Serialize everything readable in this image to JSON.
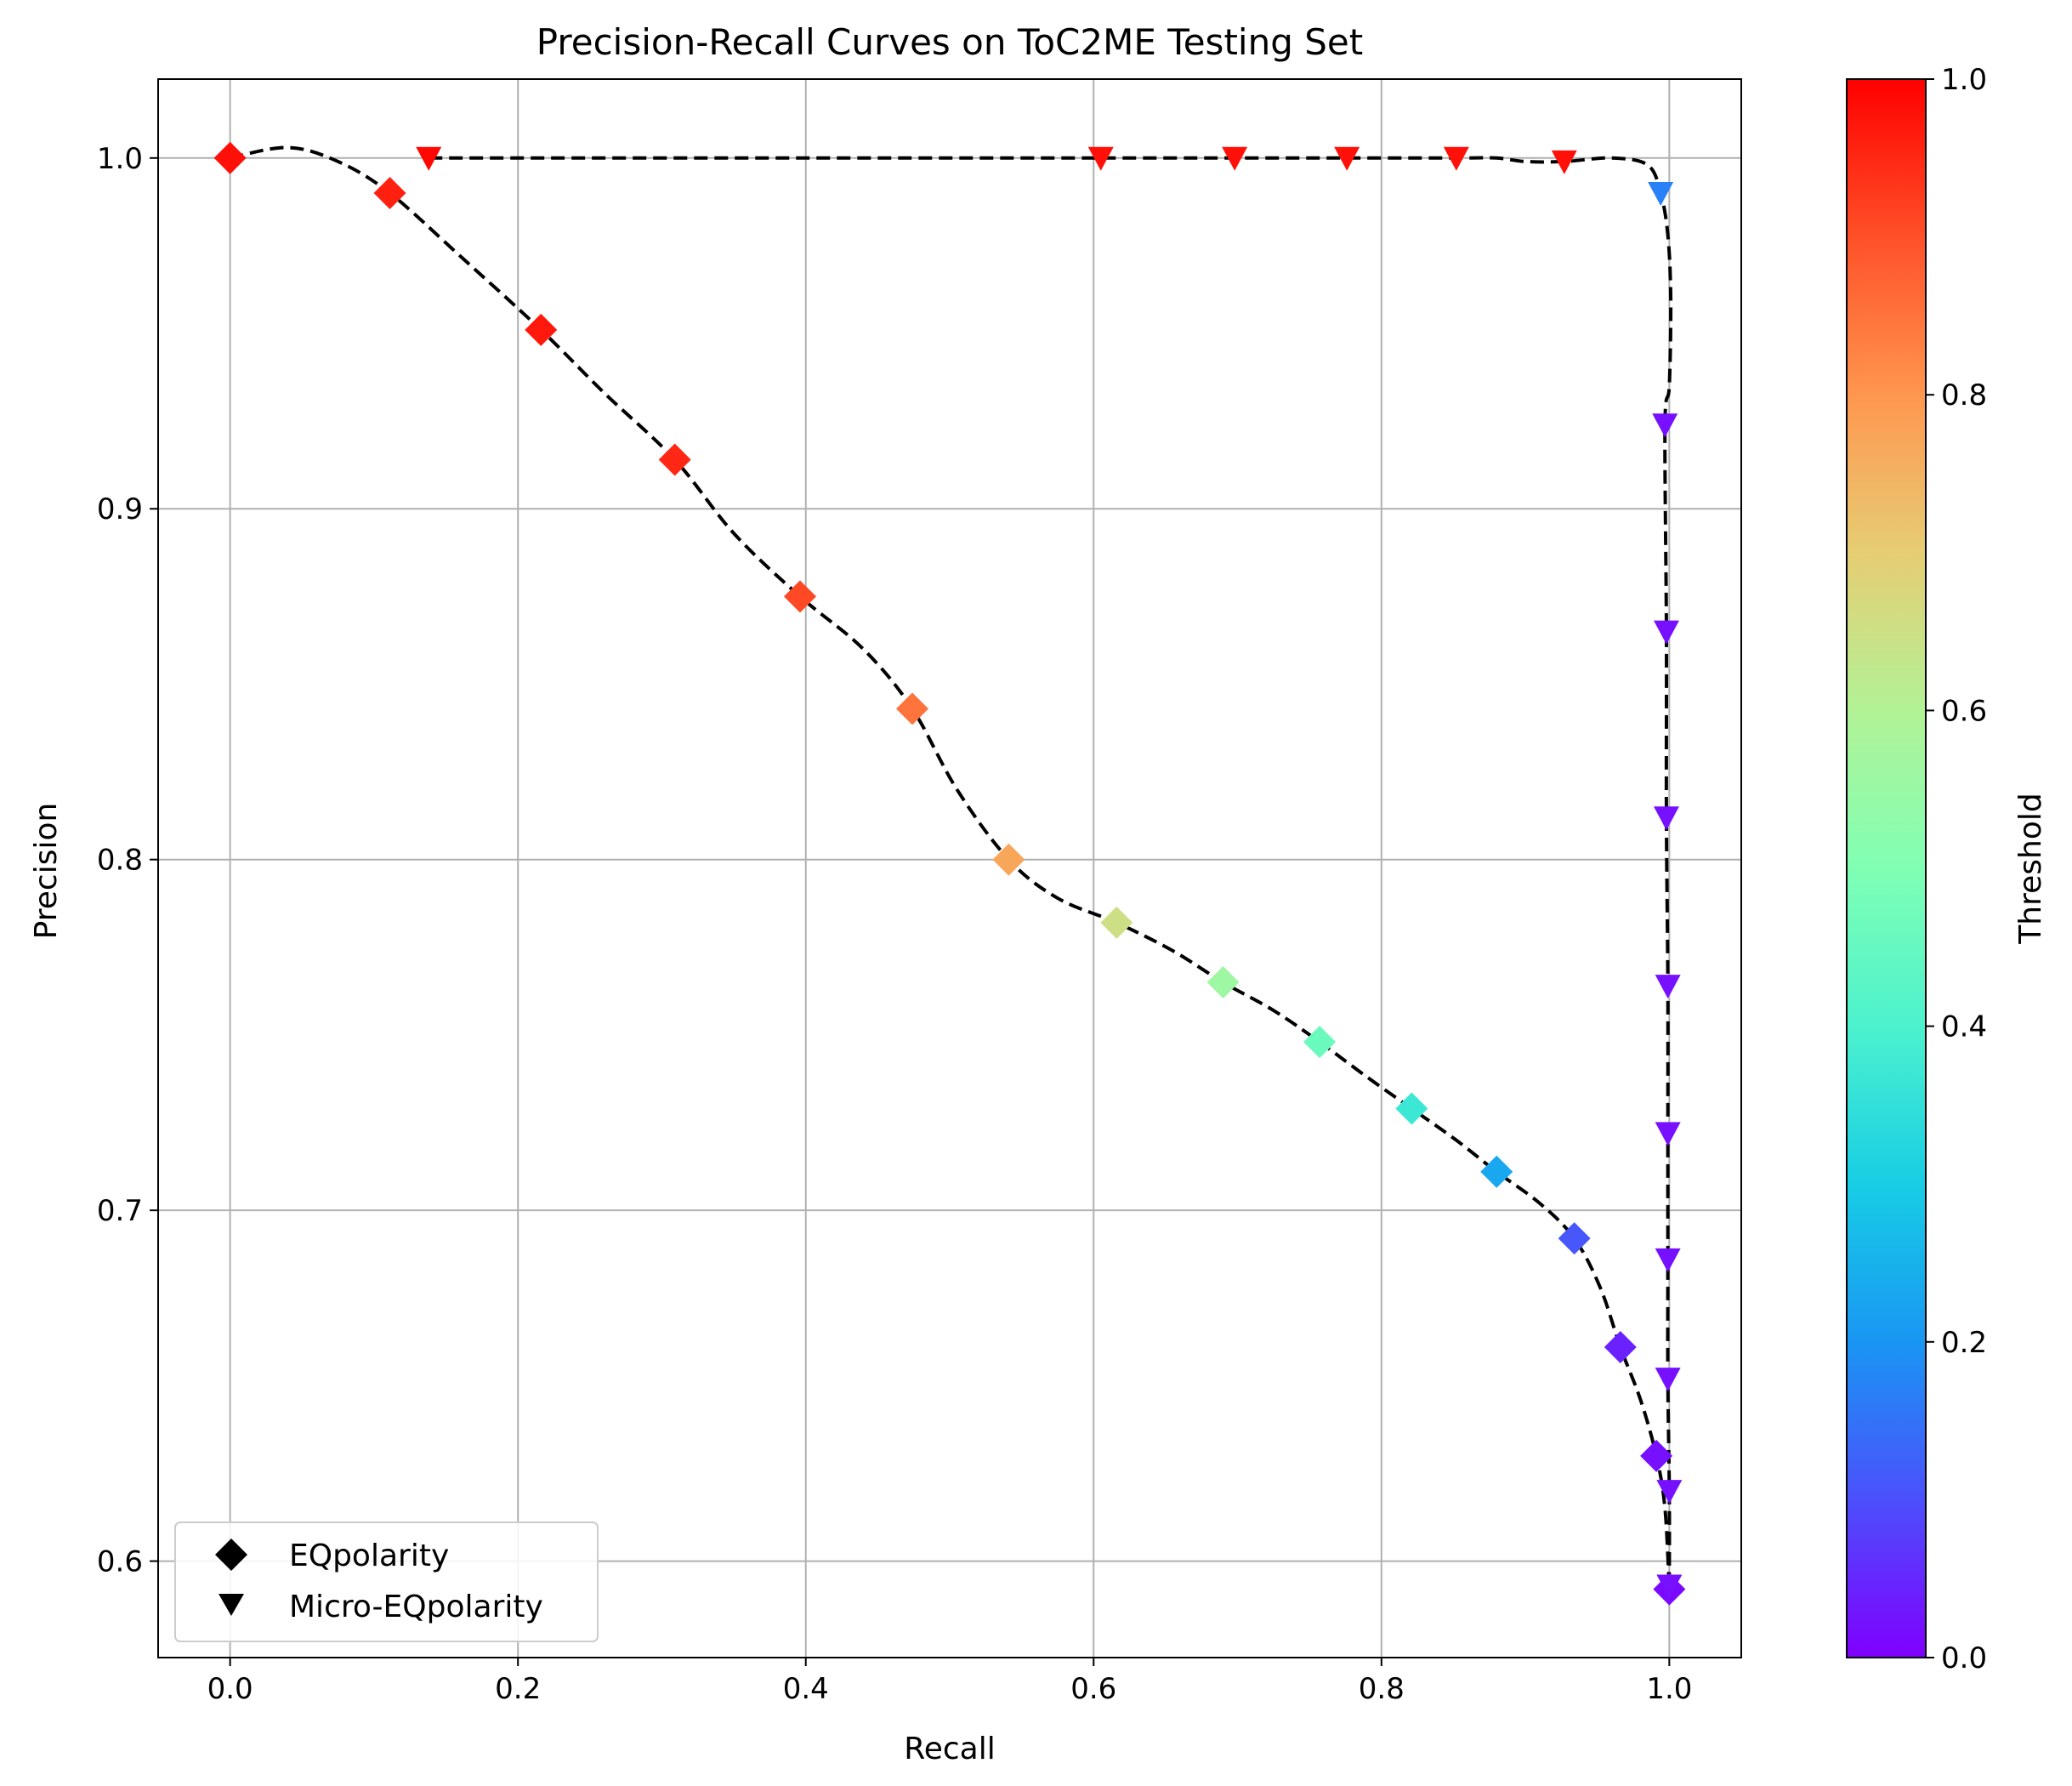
{
  "chart_data": {
    "type": "scatter",
    "title": "Precision-Recall Curves on ToC2ME Testing Set",
    "xlabel": "Recall",
    "ylabel": "Precision",
    "xlim": [
      -0.05,
      1.05
    ],
    "ylim": [
      0.5725,
      1.0225
    ],
    "xticks": [
      0.0,
      0.2,
      0.4,
      0.6,
      0.8,
      1.0
    ],
    "yticks": [
      0.6,
      0.7,
      0.8,
      0.9,
      1.0
    ],
    "grid": true,
    "legend_position": "lower-left",
    "colormap": "rainbow",
    "series": [
      {
        "name": "EQpolarity",
        "marker": "diamond",
        "points": [
          {
            "x": 0.0,
            "y": 1.0,
            "t": 0.98
          },
          {
            "x": 0.111,
            "y": 0.99,
            "t": 0.96
          },
          {
            "x": 0.216,
            "y": 0.951,
            "t": 0.97
          },
          {
            "x": 0.309,
            "y": 0.914,
            "t": 0.95
          },
          {
            "x": 0.396,
            "y": 0.875,
            "t": 0.91
          },
          {
            "x": 0.474,
            "y": 0.843,
            "t": 0.85
          },
          {
            "x": 0.541,
            "y": 0.8,
            "t": 0.77
          },
          {
            "x": 0.616,
            "y": 0.782,
            "t": 0.65
          },
          {
            "x": 0.69,
            "y": 0.765,
            "t": 0.56
          },
          {
            "x": 0.757,
            "y": 0.748,
            "t": 0.46
          },
          {
            "x": 0.821,
            "y": 0.729,
            "t": 0.37
          },
          {
            "x": 0.88,
            "y": 0.711,
            "t": 0.23
          },
          {
            "x": 0.934,
            "y": 0.692,
            "t": 0.11
          },
          {
            "x": 0.966,
            "y": 0.661,
            "t": 0.04
          },
          {
            "x": 0.991,
            "y": 0.63,
            "t": 0.02
          },
          {
            "x": 1.0,
            "y": 0.592,
            "t": 0.01
          }
        ]
      },
      {
        "name": "Micro-EQpolarity",
        "marker": "triangle-down",
        "points": [
          {
            "x": 0.138,
            "y": 1.0,
            "t": 0.99
          },
          {
            "x": 0.605,
            "y": 1.0,
            "t": 0.98
          },
          {
            "x": 0.698,
            "y": 1.0,
            "t": 0.98
          },
          {
            "x": 0.776,
            "y": 1.0,
            "t": 0.98
          },
          {
            "x": 0.852,
            "y": 1.0,
            "t": 0.98
          },
          {
            "x": 0.927,
            "y": 0.999,
            "t": 0.98
          },
          {
            "x": 0.994,
            "y": 0.99,
            "t": 0.17
          },
          {
            "x": 0.997,
            "y": 0.924,
            "t": 0.02
          },
          {
            "x": 0.998,
            "y": 0.865,
            "t": 0.02
          },
          {
            "x": 0.998,
            "y": 0.812,
            "t": 0.02
          },
          {
            "x": 0.999,
            "y": 0.764,
            "t": 0.02
          },
          {
            "x": 0.999,
            "y": 0.722,
            "t": 0.02
          },
          {
            "x": 0.999,
            "y": 0.686,
            "t": 0.02
          },
          {
            "x": 0.999,
            "y": 0.652,
            "t": 0.02
          },
          {
            "x": 1.0,
            "y": 0.62,
            "t": 0.02
          },
          {
            "x": 1.0,
            "y": 0.593,
            "t": 0.02
          }
        ]
      }
    ],
    "curves": [
      {
        "style": "dashed",
        "color": "#000000",
        "points": [
          [
            0.0,
            1.0
          ],
          [
            0.04,
            1.003
          ],
          [
            0.075,
            0.999
          ],
          [
            0.111,
            0.99
          ],
          [
            0.16,
            0.972
          ],
          [
            0.216,
            0.951
          ],
          [
            0.26,
            0.933
          ],
          [
            0.309,
            0.914
          ],
          [
            0.35,
            0.893
          ],
          [
            0.396,
            0.875
          ],
          [
            0.44,
            0.86
          ],
          [
            0.474,
            0.843
          ],
          [
            0.505,
            0.82
          ],
          [
            0.541,
            0.8
          ],
          [
            0.575,
            0.789
          ],
          [
            0.616,
            0.782
          ],
          [
            0.655,
            0.774
          ],
          [
            0.69,
            0.765
          ],
          [
            0.725,
            0.757
          ],
          [
            0.757,
            0.748
          ],
          [
            0.79,
            0.738
          ],
          [
            0.821,
            0.729
          ],
          [
            0.852,
            0.72
          ],
          [
            0.88,
            0.711
          ],
          [
            0.91,
            0.702
          ],
          [
            0.934,
            0.692
          ],
          [
            0.952,
            0.678
          ],
          [
            0.966,
            0.661
          ],
          [
            0.98,
            0.646
          ],
          [
            0.991,
            0.63
          ],
          [
            0.997,
            0.615
          ],
          [
            1.0,
            0.592
          ]
        ]
      },
      {
        "style": "dashed",
        "color": "#000000",
        "points": [
          [
            0.138,
            1.0
          ],
          [
            0.4,
            1.0
          ],
          [
            0.605,
            1.0
          ],
          [
            0.698,
            1.0
          ],
          [
            0.776,
            1.0
          ],
          [
            0.852,
            1.0
          ],
          [
            0.88,
            1.0
          ],
          [
            0.9,
            0.999
          ],
          [
            0.927,
            0.999
          ],
          [
            0.96,
            1.0
          ],
          [
            0.985,
            0.998
          ],
          [
            0.994,
            0.99
          ],
          [
            0.999,
            0.978
          ],
          [
            1.001,
            0.96
          ],
          [
            1.0,
            0.935
          ],
          [
            0.997,
            0.924
          ],
          [
            0.998,
            0.865
          ],
          [
            0.998,
            0.812
          ],
          [
            0.999,
            0.764
          ],
          [
            0.999,
            0.722
          ],
          [
            0.999,
            0.686
          ],
          [
            0.999,
            0.652
          ],
          [
            1.0,
            0.62
          ],
          [
            1.0,
            0.593
          ]
        ]
      }
    ],
    "colorbar": {
      "label": "Threshold",
      "range": [
        0.0,
        1.0
      ],
      "ticks": [
        0.0,
        0.2,
        0.4,
        0.6,
        0.8,
        1.0
      ]
    }
  },
  "legend": {
    "items": [
      {
        "label": "EQpolarity",
        "marker": "diamond"
      },
      {
        "label": "Micro-EQpolarity",
        "marker": "triangle-down"
      }
    ]
  }
}
